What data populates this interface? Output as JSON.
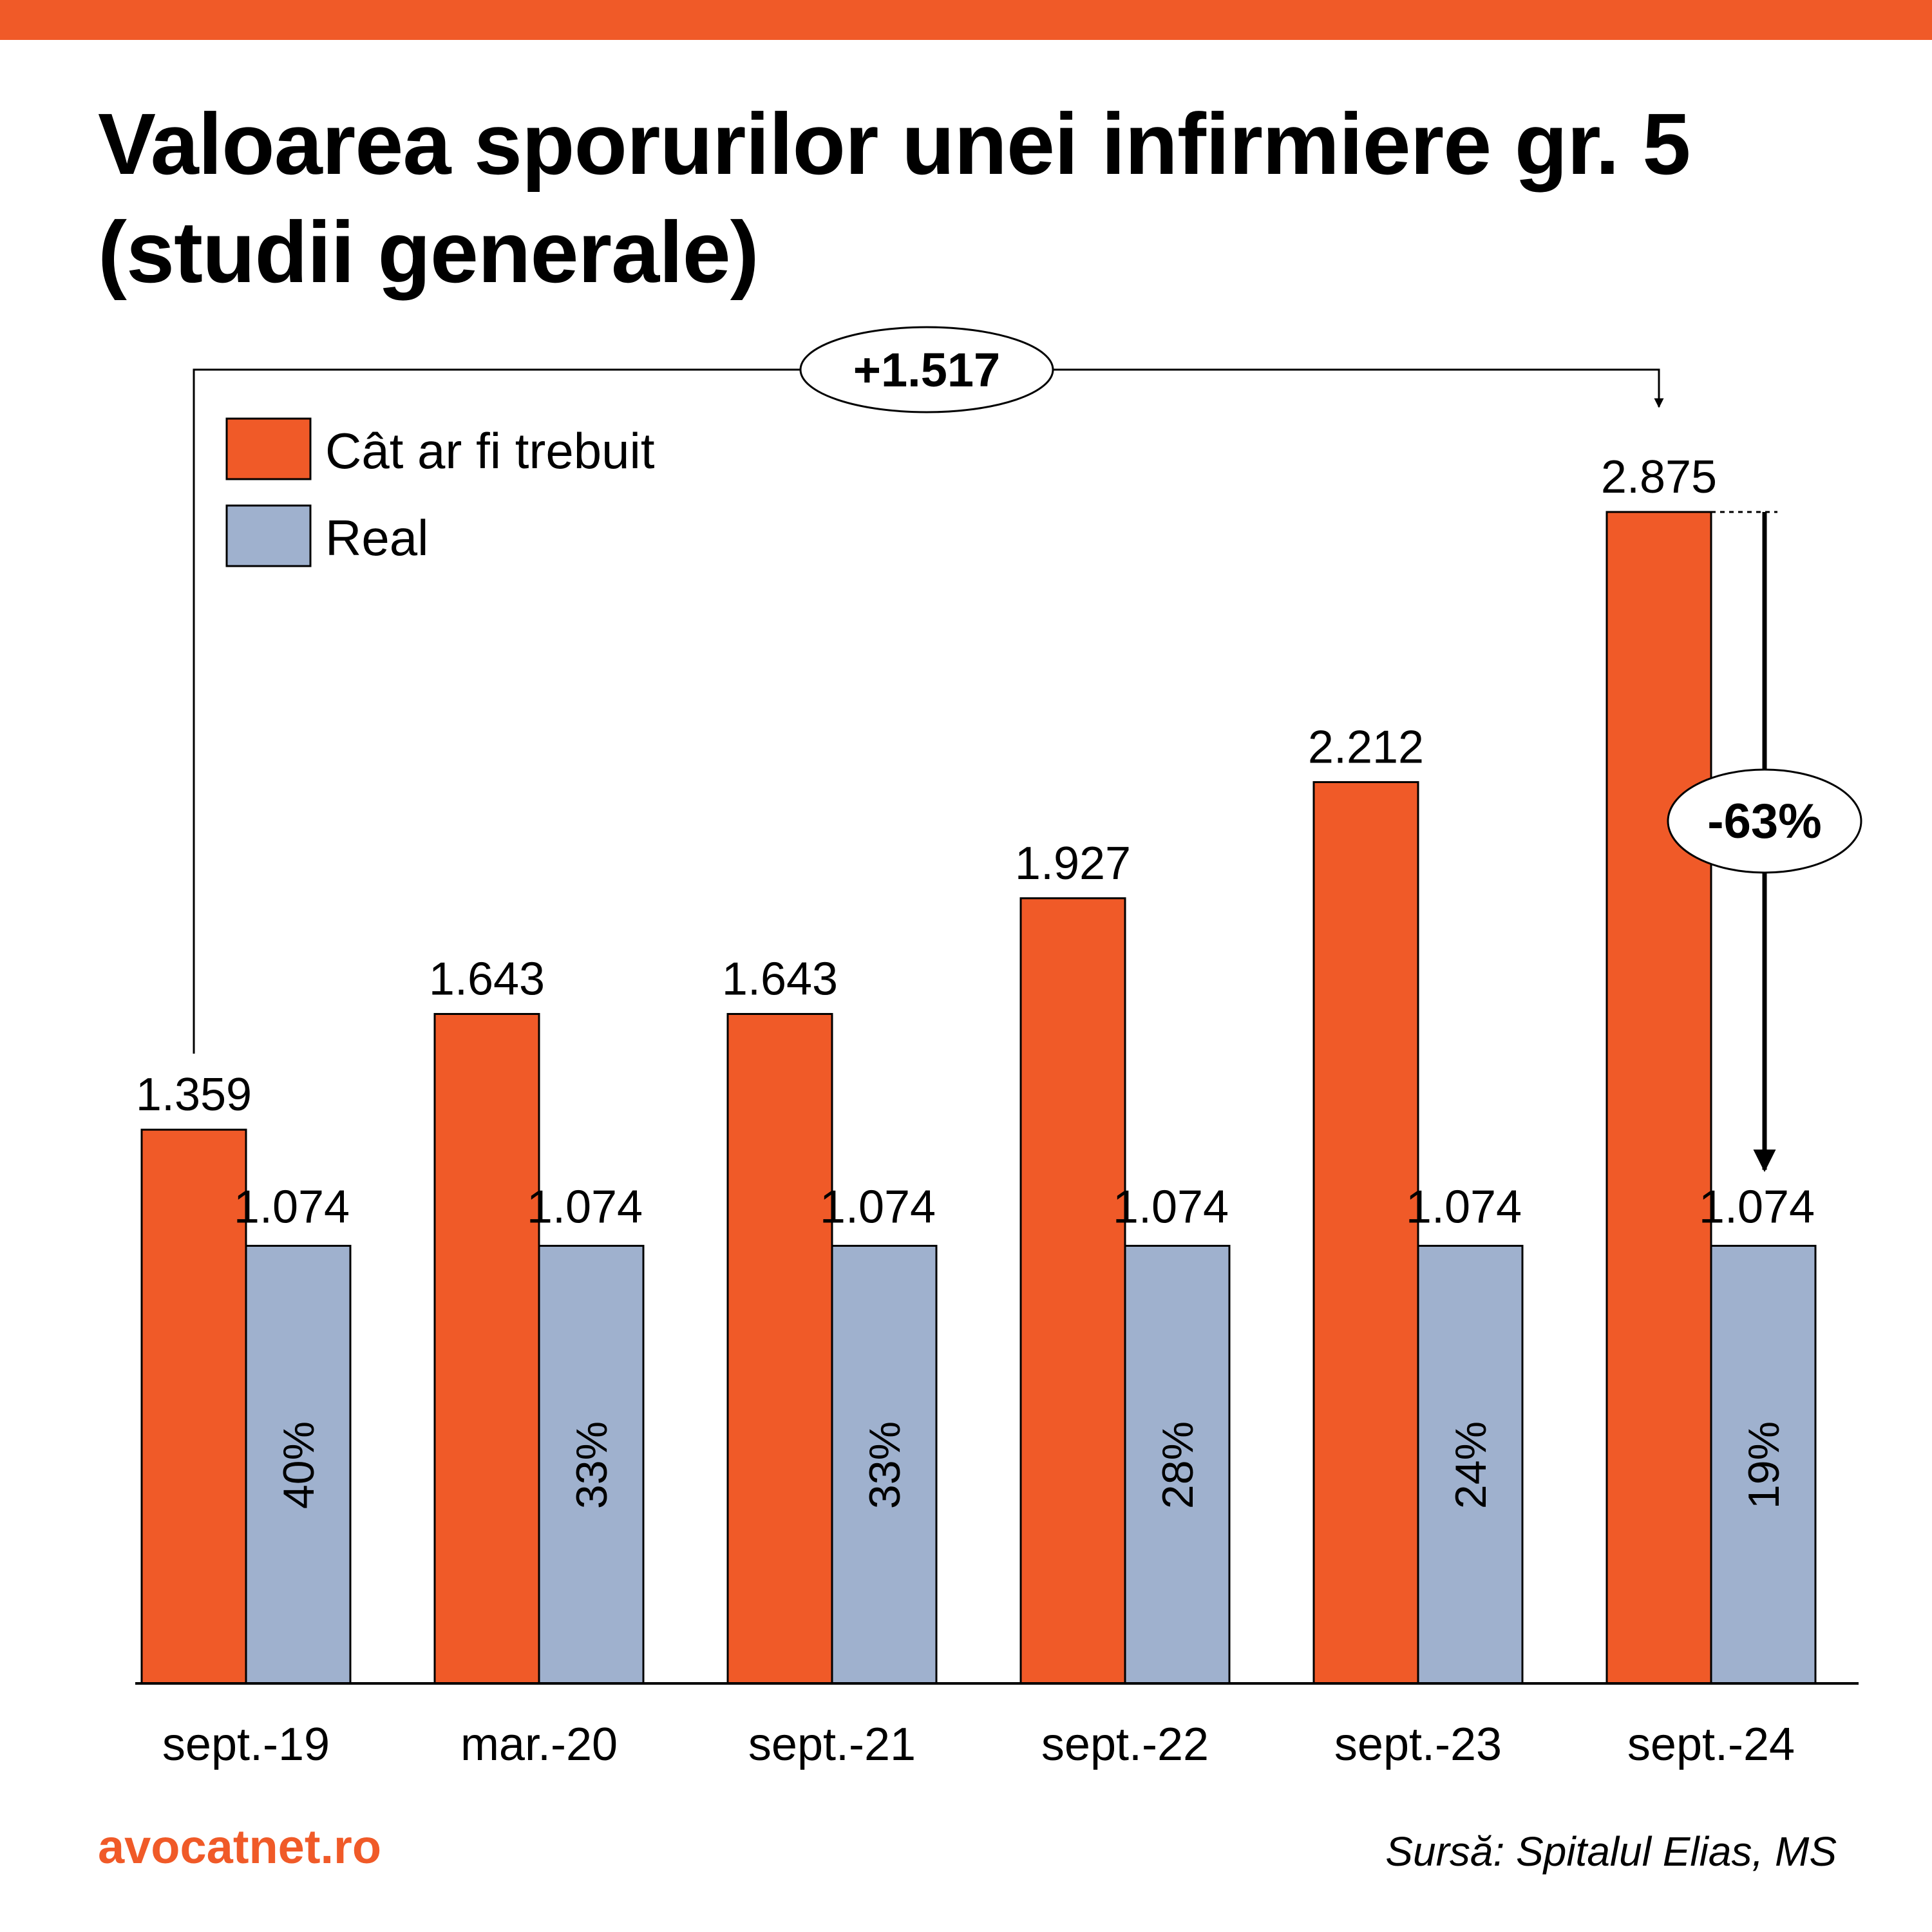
{
  "title": "Valoarea sporurilor unei infirmiere gr. 5 (studii generale)",
  "brand": "avocatnet.ro",
  "source": "Sursă: Spitalul Elias, MS",
  "colors": {
    "accent": "#F05A28",
    "should_be": "#F05A28",
    "real": "#9FB1CE"
  },
  "chart_data": {
    "type": "bar",
    "categories": [
      "sept.-19",
      "mar.-20",
      "sept.-21",
      "sept.-22",
      "sept.-23",
      "sept.-24"
    ],
    "series": [
      {
        "name": "Cât ar fi trebuit",
        "values": [
          1359,
          1643,
          1643,
          1927,
          2212,
          2875
        ],
        "labels": [
          "1.359",
          "1.643",
          "1.643",
          "1.927",
          "2.212",
          "2.875"
        ]
      },
      {
        "name": "Real",
        "values": [
          1074,
          1074,
          1074,
          1074,
          1074,
          1074
        ],
        "labels": [
          "1.074",
          "1.074",
          "1.074",
          "1.074",
          "1.074",
          "1.074"
        ],
        "inner_labels": [
          "40%",
          "33%",
          "33%",
          "28%",
          "24%",
          "19%"
        ]
      }
    ],
    "ylim": [
      0,
      3000
    ],
    "legend_position": "top-left",
    "grid": false,
    "annotations": [
      {
        "text": "+1.517",
        "from_category": "sept.-19",
        "to_category": "sept.-24"
      },
      {
        "text": "-63%",
        "category": "sept.-24"
      }
    ]
  }
}
